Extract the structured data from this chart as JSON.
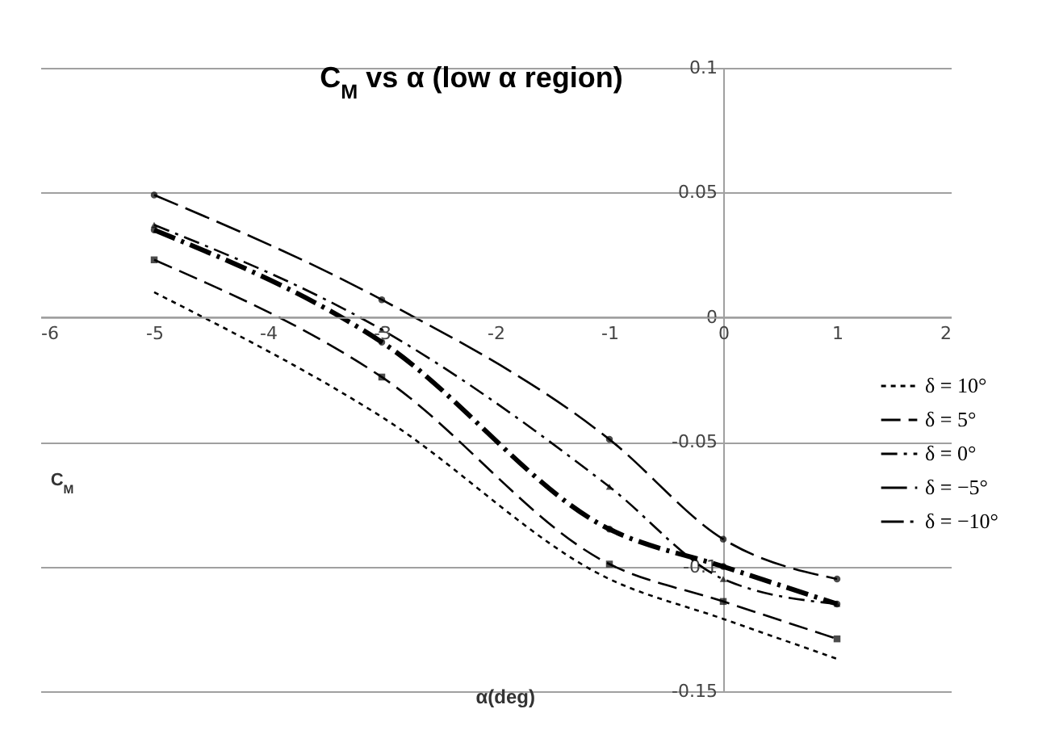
{
  "chart_data": {
    "type": "line",
    "title": "C$_{M}$ vs α  (low α region)",
    "xlabel": "α(deg)",
    "ylabel": "C$_{M}$",
    "x": [
      -5,
      -3,
      -1,
      0,
      1
    ],
    "series": [
      {
        "name": "δ = 10°",
        "color": "#000000",
        "line_style": "dotted",
        "marker": "none",
        "values": [
          0.01,
          -0.04,
          -0.105,
          -0.121,
          -0.137
        ]
      },
      {
        "name": "δ = 5°",
        "color": "#000000",
        "line_style": "dashed",
        "marker": "square",
        "values": [
          0.023,
          -0.024,
          -0.099,
          -0.114,
          -0.129
        ]
      },
      {
        "name": "δ = 0°",
        "color": "#000000",
        "line_style": "dashed",
        "marker": "triangle",
        "values": [
          0.037,
          -0.005,
          -0.068,
          -0.105,
          -0.115
        ]
      },
      {
        "name": "δ = −5°",
        "color": "#000000",
        "line_style": "dashed",
        "marker": "circle",
        "values": [
          0.049,
          0.007,
          -0.049,
          -0.089,
          -0.105
        ]
      },
      {
        "name": "δ = −10°",
        "color": "#000000",
        "line_style": "dashed",
        "marker": "circle",
        "values": [
          0.035,
          -0.01,
          -0.085,
          -0.1,
          -0.115
        ]
      }
    ],
    "xlim": [
      -6,
      2
    ],
    "xticks": [
      -6,
      -5,
      -4,
      -3,
      -2,
      -1,
      0,
      1,
      2
    ],
    "ylim": [
      -0.15,
      0.1
    ],
    "yticks": [
      -0.15,
      -0.1,
      -0.05,
      0,
      0.05,
      0.1
    ],
    "grid": "y",
    "legend": "right"
  }
}
